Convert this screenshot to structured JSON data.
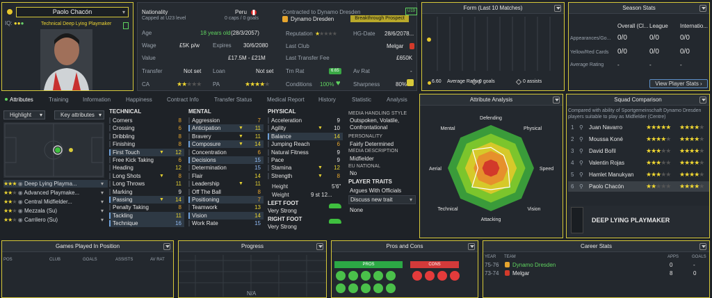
{
  "player": {
    "name": "Paolo Chacón",
    "role": "Technical Deep Lying Playmaker",
    "nationality_label": "Nationality",
    "nationality": "Peru",
    "u23": "Capped at U23 level",
    "caps": "0 caps / 0 goals",
    "age_label": "Age",
    "age": "18 years old",
    "dob": "(28/3/2057)",
    "wage_label": "Wage",
    "wage": "£5K p/w",
    "expires_label": "Expires",
    "expires": "30/6/2080",
    "value_label": "Value",
    "value": "£17.5M - £21M",
    "transfer_label": "Transfer",
    "transfer": "Not set",
    "loan_label": "Loan",
    "loan": "Not set",
    "ca_label": "CA",
    "pa_label": "PA",
    "ca_stars": 2,
    "pa_stars": 4,
    "contract": "Contracted to Dynamo Dresden",
    "club": "Dynamo Dresden",
    "prospect": "Breakthrough Prospect",
    "u19": "U19",
    "reputation_label": "Reputation",
    "hg_label": "HG-Date",
    "hg": "28/6/2078...",
    "lastclub_label": "Last Club",
    "lastclub": "Melgar",
    "fee_label": "Last Transfer Fee",
    "fee": "£650K",
    "trm_label": "Trn Rat",
    "trm": "6.65",
    "avrat_label": "Av Rat",
    "avrat": "-",
    "conditions_label": "Conditions",
    "conditions": "100%",
    "sharpness_label": "Sharpness",
    "sharpness": "80%",
    "iq_label": "IQ:"
  },
  "form": {
    "title": "Form (Last 10 Matches)",
    "avg_value": "6.60",
    "avg_label": "Average Rating",
    "goals": "0 goals",
    "assists": "0 assists"
  },
  "season": {
    "title": "Season Stats",
    "cols": [
      "Overall (Cl...",
      "League",
      "Internatio..."
    ],
    "rows": [
      {
        "label": "Appearances/Go...",
        "vals": [
          "0/0",
          "0/0",
          "0/0"
        ]
      },
      {
        "label": "Yellow/Red Cards",
        "vals": [
          "0/0",
          "0/0",
          "0/0"
        ]
      },
      {
        "label": "Average Rating",
        "vals": [
          "-",
          "-",
          "-"
        ]
      }
    ],
    "button": "View Player Stats"
  },
  "tabs": [
    "Attributes",
    "Training",
    "Information",
    "Happiness",
    "Contract Info",
    "Transfer Status",
    "Medical Report",
    "History",
    "Statistic",
    "Analysis"
  ],
  "highlight": {
    "label": "Highlight",
    "key": "Key attributes"
  },
  "positions": [
    {
      "name": "Deep Lying Playma...",
      "stars": 3
    },
    {
      "name": "Advanced Playmake...",
      "stars": 2
    },
    {
      "name": "Central Midfielder...",
      "stars": 2
    },
    {
      "name": "Mezzala (Su)",
      "stars": 2
    },
    {
      "name": "Carrilero (Su)",
      "stars": 2
    }
  ],
  "technical": {
    "title": "TECHNICAL",
    "items": [
      {
        "n": "Corners",
        "v": "8"
      },
      {
        "n": "Crossing",
        "v": "6"
      },
      {
        "n": "Dribbling",
        "v": "8"
      },
      {
        "n": "Finishing",
        "v": "8"
      },
      {
        "n": "First Touch",
        "v": "12"
      },
      {
        "n": "Free Kick Taking",
        "v": "6"
      },
      {
        "n": "Heading",
        "v": "12"
      },
      {
        "n": "Long Shots",
        "v": "8"
      },
      {
        "n": "Long Throws",
        "v": "11"
      },
      {
        "n": "Marking",
        "v": "9"
      },
      {
        "n": "Passing",
        "v": "14"
      },
      {
        "n": "Penalty Taking",
        "v": "8"
      },
      {
        "n": "Tackling",
        "v": "11"
      },
      {
        "n": "Technique",
        "v": "16"
      }
    ]
  },
  "mental": {
    "title": "MENTAL",
    "items": [
      {
        "n": "Aggression",
        "v": "7"
      },
      {
        "n": "Anticipation",
        "v": "11"
      },
      {
        "n": "Bravery",
        "v": "11"
      },
      {
        "n": "Composure",
        "v": "14"
      },
      {
        "n": "Concentration",
        "v": "6"
      },
      {
        "n": "Decisions",
        "v": "15"
      },
      {
        "n": "Determination",
        "v": "15"
      },
      {
        "n": "Flair",
        "v": "14"
      },
      {
        "n": "Leadership",
        "v": "11"
      },
      {
        "n": "Off The Ball",
        "v": "8"
      },
      {
        "n": "Positioning",
        "v": "7"
      },
      {
        "n": "Teamwork",
        "v": "13"
      },
      {
        "n": "Vision",
        "v": "14"
      },
      {
        "n": "Work Rate",
        "v": "15"
      }
    ]
  },
  "physical": {
    "title": "PHYSICAL",
    "items": [
      {
        "n": "Acceleration",
        "v": "9"
      },
      {
        "n": "Agility",
        "v": "10"
      },
      {
        "n": "Balance",
        "v": "14"
      },
      {
        "n": "Jumping Reach",
        "v": "6"
      },
      {
        "n": "Natural Fitness",
        "v": "9"
      },
      {
        "n": "Pace",
        "v": "9"
      },
      {
        "n": "Stamina",
        "v": "12"
      },
      {
        "n": "Strength",
        "v": "8"
      }
    ],
    "height_label": "Height",
    "height": "5'6\"",
    "weight_label": "Weight",
    "weight": "9 st 12...",
    "leftfoot_label": "LEFT FOOT",
    "leftfoot": "Very Strong",
    "rightfoot_label": "RIGHT FOOT",
    "rightfoot": "Very Strong"
  },
  "media": {
    "style_label": "MEDIA HANDLING STYLE",
    "style": "Outspoken, Volatile, Confrontational",
    "personality_label": "PERSONALITY",
    "personality": "Fairly Determined",
    "desc_label": "MEDIA DESCRIPTION",
    "desc": "Midfielder",
    "eu_label": "EU NATIONAL",
    "eu": "No",
    "traits_label": "PLAYER TRAITS",
    "trait1": "Argues With Officials",
    "trait2": "Discuss new trait",
    "trait3": "None"
  },
  "analysis": {
    "title": "Attribute Analysis",
    "labels": [
      "Defending",
      "Physical",
      "Speed",
      "Vision",
      "Attacking",
      "Technical",
      "Aerial",
      "Mental"
    ],
    "values": [
      0.48,
      0.42,
      0.4,
      0.62,
      0.5,
      0.62,
      0.3,
      0.6
    ]
  },
  "squad": {
    "title": "Squad Comparison",
    "desc": "Compared with ability of Sportgemeinschaft Dynamo Dresden players suitable to play as Midfielder (Centre)",
    "rows": [
      {
        "rank": "1",
        "name": "Juan Navarro",
        "stars": 5
      },
      {
        "rank": "2",
        "name": "Moussa Koné",
        "stars": 4
      },
      {
        "rank": "3",
        "name": "David Bořil",
        "stars": 3
      },
      {
        "rank": "4",
        "name": "Valentin Rojas",
        "stars": 3
      },
      {
        "rank": "5",
        "name": "Hamlet Manukyan",
        "stars": 3
      },
      {
        "rank": "6",
        "name": "Paolo Chacón",
        "stars": 2
      }
    ],
    "role": "DEEP LYING PLAYMAKER"
  },
  "bottom": {
    "games_title": "Games Played In Position",
    "games_cols": [
      "POS",
      "CLUB",
      "GOALS",
      "ASSISTS",
      "AV RAT"
    ],
    "progress_title": "Progress",
    "na": "N/A",
    "pros_title": "Pros and Cons",
    "pros": "PROS",
    "cons": "CONS",
    "career_title": "Career Stats",
    "career_cols": [
      "YEAR",
      "TEAM",
      "APPS",
      "GOALS"
    ],
    "career_rows": [
      {
        "year": "75-76",
        "team": "Dynamo Dresden",
        "apps": "0",
        "goals": "-"
      },
      {
        "year": "73-74",
        "team": "Melgar",
        "apps": "8",
        "goals": "0"
      }
    ]
  }
}
